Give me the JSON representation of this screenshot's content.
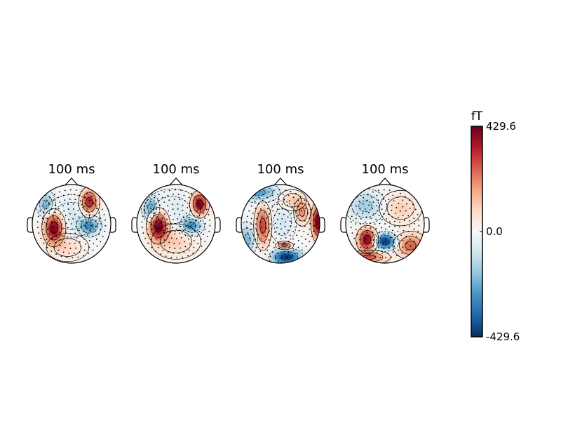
{
  "chart_data": {
    "type": "heatmap",
    "subtype": "topomap",
    "colormap": "RdBu_r",
    "colorbar": {
      "unit": "fT",
      "max": 429.6,
      "min": -429.6,
      "ticks": [
        {
          "value": 429.6,
          "label": "429.6"
        },
        {
          "value": 0.0,
          "label": "0.0"
        },
        {
          "value": -429.6,
          "label": "-429.6"
        }
      ]
    },
    "maps": [
      {
        "title": "100 ms",
        "blobs": [
          {
            "x": -0.45,
            "y": -0.1,
            "value": 430,
            "sx": 0.17,
            "sy": 0.27
          },
          {
            "x": 0.45,
            "y": 0.55,
            "value": 360,
            "sx": 0.15,
            "sy": 0.22
          },
          {
            "x": 0.45,
            "y": -0.05,
            "value": -260,
            "sx": 0.18,
            "sy": 0.16
          },
          {
            "x": -0.65,
            "y": 0.5,
            "value": -200,
            "sx": 0.14,
            "sy": 0.2
          },
          {
            "x": -0.1,
            "y": -0.6,
            "value": 90,
            "sx": 0.3,
            "sy": 0.2
          },
          {
            "x": 0.0,
            "y": 0.2,
            "value": -80,
            "sx": 0.4,
            "sy": 0.3
          }
        ]
      },
      {
        "title": "100 ms",
        "blobs": [
          {
            "x": -0.45,
            "y": -0.05,
            "value": 430,
            "sx": 0.17,
            "sy": 0.26
          },
          {
            "x": 0.6,
            "y": 0.5,
            "value": 420,
            "sx": 0.14,
            "sy": 0.2
          },
          {
            "x": 0.4,
            "y": -0.05,
            "value": -280,
            "sx": 0.18,
            "sy": 0.15
          },
          {
            "x": -0.65,
            "y": 0.4,
            "value": -240,
            "sx": 0.13,
            "sy": 0.2
          },
          {
            "x": 0.0,
            "y": -0.45,
            "value": 110,
            "sx": 0.35,
            "sy": 0.25
          },
          {
            "x": -0.1,
            "y": 0.35,
            "value": -60,
            "sx": 0.4,
            "sy": 0.3
          }
        ]
      },
      {
        "title": "100 ms",
        "blobs": [
          {
            "x": -0.45,
            "y": -0.05,
            "value": 300,
            "sx": 0.13,
            "sy": 0.35
          },
          {
            "x": 0.95,
            "y": 0.05,
            "value": 430,
            "sx": 0.1,
            "sy": 0.3
          },
          {
            "x": 0.55,
            "y": 0.3,
            "value": 200,
            "sx": 0.12,
            "sy": 0.2
          },
          {
            "x": 0.1,
            "y": -0.55,
            "value": 330,
            "sx": 0.13,
            "sy": 0.06
          },
          {
            "x": 0.15,
            "y": -0.85,
            "value": -430,
            "sx": 0.25,
            "sy": 0.13
          },
          {
            "x": -0.55,
            "y": 0.8,
            "value": -260,
            "sx": 0.3,
            "sy": 0.15
          },
          {
            "x": -0.85,
            "y": -0.4,
            "value": -200,
            "sx": 0.15,
            "sy": 0.25
          },
          {
            "x": 0.05,
            "y": 0.05,
            "value": -80,
            "sx": 0.2,
            "sy": 0.3
          },
          {
            "x": 0.3,
            "y": 0.6,
            "value": 120,
            "sx": 0.2,
            "sy": 0.15
          }
        ]
      },
      {
        "title": "100 ms",
        "blobs": [
          {
            "x": -0.45,
            "y": -0.4,
            "value": 430,
            "sx": 0.16,
            "sy": 0.2
          },
          {
            "x": 0.0,
            "y": -0.45,
            "value": -430,
            "sx": 0.2,
            "sy": 0.14
          },
          {
            "x": 0.65,
            "y": -0.55,
            "value": 260,
            "sx": 0.25,
            "sy": 0.2
          },
          {
            "x": 0.4,
            "y": 0.4,
            "value": 110,
            "sx": 0.3,
            "sy": 0.25
          },
          {
            "x": -0.5,
            "y": 0.45,
            "value": -150,
            "sx": 0.3,
            "sy": 0.25
          },
          {
            "x": -0.4,
            "y": -0.85,
            "value": 250,
            "sx": 0.3,
            "sy": 0.1
          }
        ]
      }
    ]
  }
}
